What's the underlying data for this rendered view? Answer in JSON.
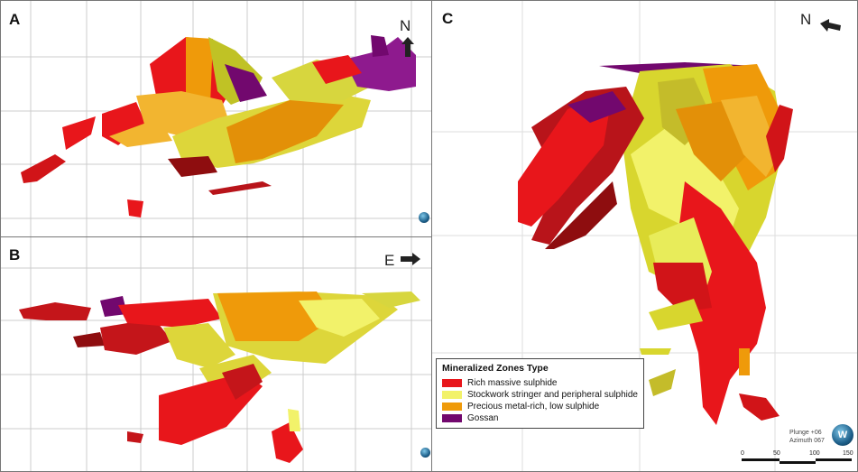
{
  "panels": {
    "a": {
      "label": "A",
      "direction": "N"
    },
    "b": {
      "label": "B",
      "direction": "E"
    },
    "c": {
      "label": "C",
      "direction": "N",
      "plunge": "Plunge +06",
      "azimuth": "Azimuth 067",
      "globe_letter": "W",
      "scale_ticks": [
        "0",
        "50",
        "100",
        "150"
      ]
    }
  },
  "legend": {
    "title": "Mineralized Zones Type",
    "items": [
      {
        "label": "Rich massive sulphide",
        "color": "#e8161b"
      },
      {
        "label": "Stockwork stringer and peripheral sulphide",
        "color": "#f2f26a"
      },
      {
        "label": "Precious metal-rich, low sulphide",
        "color": "#ef9a0a"
      },
      {
        "label": "Gossan",
        "color": "#72086e"
      }
    ]
  }
}
